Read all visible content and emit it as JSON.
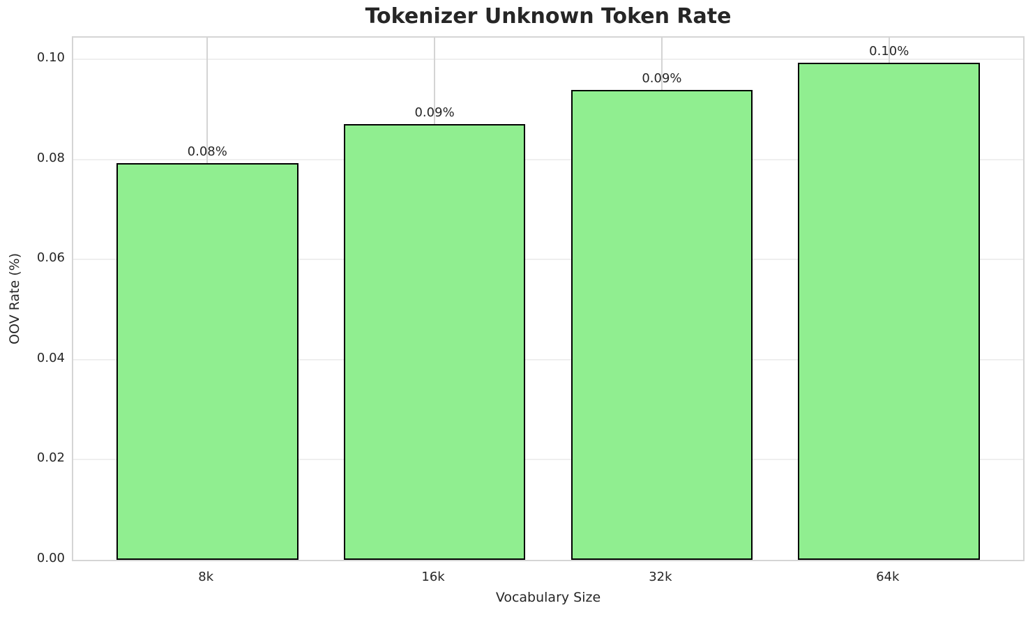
{
  "chart_data": {
    "type": "bar",
    "title": "Tokenizer Unknown Token Rate",
    "xlabel": "Vocabulary Size",
    "ylabel": "OOV Rate (%)",
    "categories": [
      "8k",
      "16k",
      "32k",
      "64k"
    ],
    "values": [
      0.0792,
      0.0871,
      0.0939,
      0.0993
    ],
    "bar_labels": [
      "0.08%",
      "0.09%",
      "0.09%",
      "0.10%"
    ],
    "yticks": [
      0,
      0.02,
      0.04,
      0.06,
      0.08,
      0.1
    ],
    "ytick_labels": [
      "0.00",
      "0.02",
      "0.04",
      "0.06",
      "0.08",
      "0.10"
    ],
    "ylim": [
      0,
      0.1043
    ],
    "grid": true,
    "legend": false,
    "colors": {
      "bar_fill": "#90EE90",
      "bar_edge": "#000000",
      "grid_horizontal": "#efefef",
      "grid_vertical": "#d4d4d4",
      "spine": "#d5d5d5",
      "text": "#262626"
    }
  }
}
